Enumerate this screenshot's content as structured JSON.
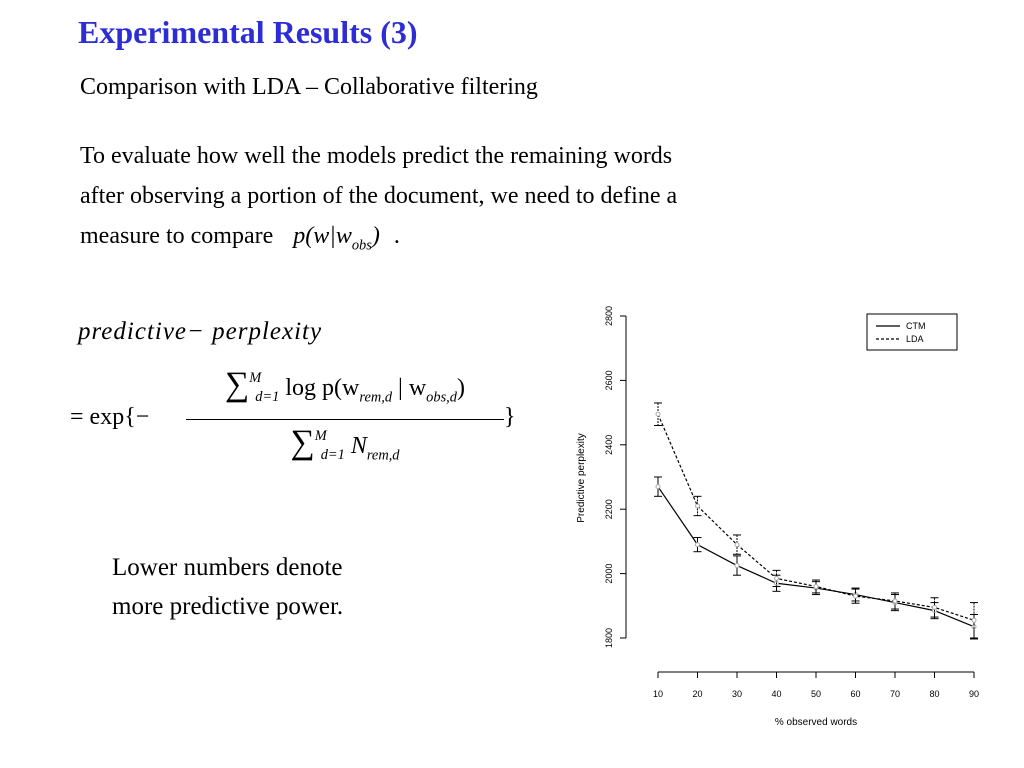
{
  "slide": {
    "title": "Experimental Results (3)",
    "subtitle": "Comparison with LDA – Collaborative filtering",
    "body_lines": [
      "To evaluate how well the models predict the remaining words",
      "after observing a portion of the document, we need to define a",
      "measure to compare"
    ],
    "inline_formula": "p(w|w",
    "inline_formula_sub": "obs",
    "inline_formula_close": ")",
    "inline_period": ".",
    "formula_label": "predictive− perplexity",
    "eq_prefix": "= exp{−",
    "eq_close": "}",
    "numerator": {
      "sum": "∑",
      "sum_sup": "M",
      "sum_sub": "d=1",
      "expr": "log p(w",
      "expr_sub1": "rem,d",
      "mid": " | w",
      "expr_sub2": "obs,d",
      "close": ")"
    },
    "denominator": {
      "sum": "∑",
      "sum_sup": "M",
      "sum_sub": "d=1",
      "expr": "N",
      "expr_sub": "rem,d"
    },
    "note_lines": [
      "Lower numbers denote",
      "more predictive power."
    ]
  },
  "chart_data": {
    "type": "line",
    "xlabel": "% observed words",
    "ylabel": "Predictive perplexity",
    "x": [
      10,
      20,
      30,
      40,
      50,
      60,
      70,
      80,
      90
    ],
    "xlim": [
      10,
      90
    ],
    "ylim": [
      1800,
      2800
    ],
    "x_ticks": [
      10,
      20,
      30,
      40,
      50,
      60,
      70,
      80,
      90
    ],
    "y_ticks": [
      1800,
      2000,
      2200,
      2400,
      2600,
      2800
    ],
    "series": [
      {
        "name": "CTM",
        "style": "solid",
        "values": [
          2270,
          2090,
          2025,
          1970,
          1955,
          1935,
          1910,
          1885,
          1835
        ],
        "error": [
          30,
          22,
          30,
          25,
          20,
          20,
          25,
          25,
          38
        ]
      },
      {
        "name": "LDA",
        "style": "dashed",
        "values": [
          2495,
          2210,
          2090,
          1985,
          1960,
          1930,
          1915,
          1895,
          1855
        ],
        "error": [
          35,
          30,
          30,
          25,
          20,
          22,
          25,
          30,
          55
        ]
      }
    ],
    "legend_position": "top-right",
    "grid": false,
    "colors": {
      "line": "#000000",
      "marker": "#aaaaaa"
    }
  }
}
